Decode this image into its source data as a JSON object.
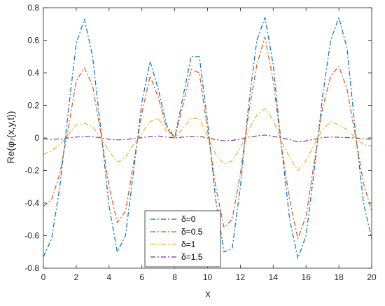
{
  "chart_data": {
    "type": "line",
    "xlabel": "x",
    "ylabel": "Re(φ₇(x,y,t))",
    "xlim": [
      0,
      20
    ],
    "ylim": [
      -0.8,
      0.8
    ],
    "x_ticks": [
      "0",
      "2",
      "4",
      "6",
      "8",
      "10",
      "12",
      "14",
      "16",
      "18",
      "20"
    ],
    "y_ticks": [
      "-0.8",
      "-0.6",
      "-0.4",
      "-0.2",
      "0",
      "0.2",
      "0.4",
      "0.6",
      "0.8"
    ],
    "grid": false,
    "legend_position": "bottom-center",
    "series": [
      {
        "name": "δ=0",
        "color": "#0072BD",
        "x": [
          0,
          0.5,
          1,
          1.5,
          2,
          2.5,
          3,
          3.5,
          4,
          4.5,
          5,
          5.5,
          6,
          6.5,
          7,
          7.5,
          8,
          8.5,
          9,
          9.5,
          10,
          10.5,
          11,
          11.5,
          12,
          12.5,
          13,
          13.5,
          14,
          14.5,
          15,
          15.5,
          16,
          16.5,
          17,
          17.5,
          18,
          18.5,
          19,
          19.5,
          20
        ],
        "y": [
          -0.73,
          -0.62,
          -0.3,
          0.15,
          0.58,
          0.73,
          0.5,
          0.05,
          -0.42,
          -0.7,
          -0.6,
          -0.2,
          0.22,
          0.47,
          0.3,
          0.08,
          0.0,
          0.25,
          0.5,
          0.5,
          0.1,
          -0.38,
          -0.7,
          -0.68,
          -0.3,
          0.2,
          0.6,
          0.74,
          0.45,
          -0.05,
          -0.5,
          -0.74,
          -0.6,
          -0.2,
          0.25,
          0.6,
          0.74,
          0.55,
          0.05,
          -0.4,
          -0.62
        ]
      },
      {
        "name": "δ=0.5",
        "color": "#D95319",
        "x": [
          0,
          0.5,
          1,
          1.5,
          2,
          2.5,
          3,
          3.5,
          4,
          4.5,
          5,
          5.5,
          6,
          6.5,
          7,
          7.5,
          8,
          8.5,
          9,
          9.5,
          10,
          10.5,
          11,
          11.5,
          12,
          12.5,
          13,
          13.5,
          14,
          14.5,
          15,
          15.5,
          16,
          16.5,
          17,
          17.5,
          18,
          18.5,
          19,
          19.5,
          20
        ],
        "y": [
          -0.42,
          -0.38,
          -0.22,
          0.05,
          0.35,
          0.43,
          0.32,
          0.03,
          -0.3,
          -0.52,
          -0.45,
          -0.15,
          0.15,
          0.38,
          0.25,
          0.06,
          0.0,
          0.2,
          0.42,
          0.4,
          0.05,
          -0.3,
          -0.55,
          -0.5,
          -0.22,
          0.15,
          0.45,
          0.62,
          0.35,
          -0.05,
          -0.38,
          -0.62,
          -0.48,
          -0.15,
          0.18,
          0.38,
          0.44,
          0.3,
          0.02,
          -0.28,
          -0.45
        ]
      },
      {
        "name": "δ=1",
        "color": "#EDB120",
        "x": [
          0,
          0.5,
          1,
          1.5,
          2,
          2.5,
          3,
          3.5,
          4,
          4.5,
          5,
          5.5,
          6,
          6.5,
          7,
          7.5,
          8,
          8.5,
          9,
          9.5,
          10,
          10.5,
          11,
          11.5,
          12,
          12.5,
          13,
          13.5,
          14,
          14.5,
          15,
          15.5,
          16,
          16.5,
          17,
          17.5,
          18,
          18.5,
          19,
          19.5,
          20
        ],
        "y": [
          -0.1,
          -0.08,
          -0.04,
          0.02,
          0.08,
          0.09,
          0.07,
          0.0,
          -0.08,
          -0.15,
          -0.12,
          -0.04,
          0.03,
          0.1,
          0.12,
          0.04,
          0.0,
          0.06,
          0.12,
          0.12,
          0.01,
          -0.1,
          -0.16,
          -0.14,
          -0.06,
          0.05,
          0.14,
          0.18,
          0.11,
          -0.02,
          -0.12,
          -0.2,
          -0.14,
          -0.04,
          0.05,
          0.1,
          0.08,
          0.05,
          0.0,
          -0.04,
          -0.05
        ]
      },
      {
        "name": "δ=1.5",
        "color": "#7E2F8E",
        "x": [
          0,
          0.5,
          1,
          1.5,
          2,
          2.5,
          3,
          3.5,
          4,
          4.5,
          5,
          5.5,
          6,
          6.5,
          7,
          7.5,
          8,
          8.5,
          9,
          9.5,
          10,
          10.5,
          11,
          11.5,
          12,
          12.5,
          13,
          13.5,
          14,
          14.5,
          15,
          15.5,
          16,
          16.5,
          17,
          17.5,
          18,
          18.5,
          19,
          19.5,
          20
        ],
        "y": [
          -0.005,
          -0.008,
          -0.006,
          0.0,
          0.005,
          0.01,
          0.008,
          0.0,
          -0.008,
          -0.012,
          -0.01,
          -0.004,
          0.002,
          0.008,
          0.012,
          0.005,
          0.0,
          0.005,
          0.01,
          0.01,
          0.0,
          -0.01,
          -0.018,
          -0.015,
          -0.008,
          0.005,
          0.012,
          0.018,
          0.01,
          0.0,
          -0.01,
          -0.025,
          -0.018,
          -0.008,
          0.002,
          0.006,
          0.004,
          0.002,
          0.0,
          -0.005,
          -0.008
        ]
      }
    ]
  }
}
